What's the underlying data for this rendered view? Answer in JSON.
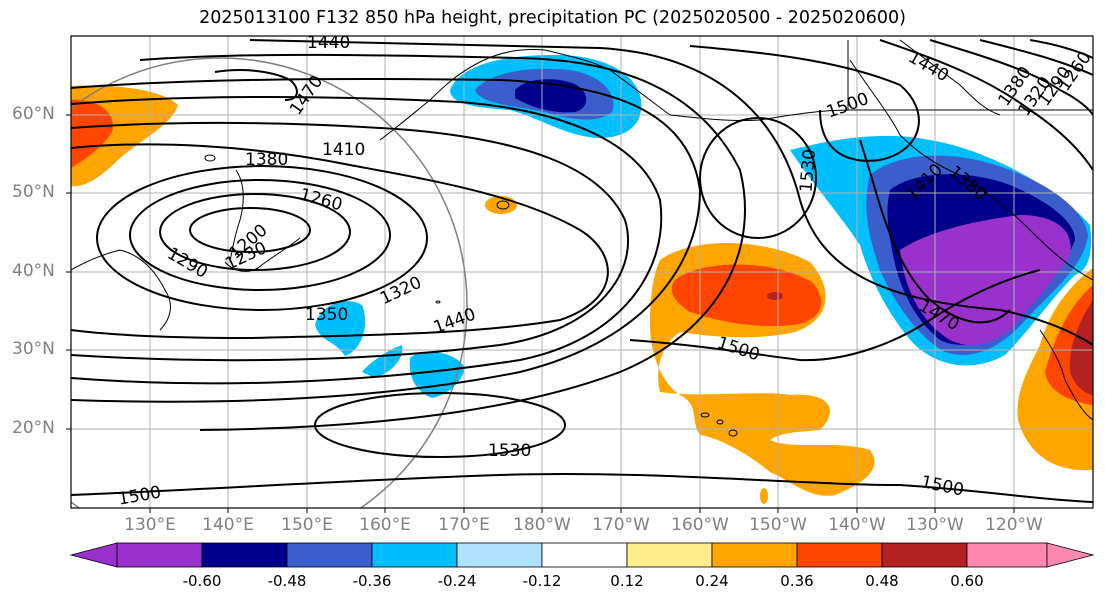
{
  "title": "2025013100 F132 850 hPa height, precipitation PC (2025020500 - 2025020600)",
  "lat_labels": [
    "60°N",
    "50°N",
    "40°N",
    "30°N",
    "20°N"
  ],
  "lon_labels": [
    "130°E",
    "140°E",
    "150°E",
    "160°E",
    "170°E",
    "180°W",
    "170°W",
    "160°W",
    "150°W",
    "140°W",
    "130°W",
    "120°W"
  ],
  "contour_labels": [
    "1440",
    "1470",
    "1380",
    "1410",
    "1260",
    "1200",
    "1230",
    "1290",
    "1320",
    "1350",
    "1440",
    "1500",
    "1530",
    "1500",
    "1500",
    "1530",
    "1440",
    "1410",
    "1380",
    "1470",
    "1500",
    "1380",
    "1320",
    "1290",
    "1260"
  ],
  "colorbar": {
    "ticks": [
      "-0.60",
      "-0.48",
      "-0.36",
      "-0.24",
      "-0.12",
      "0.12",
      "0.24",
      "0.36",
      "0.48",
      "0.60"
    ],
    "colors": [
      "#9932CC",
      "#00008B",
      "#3A5FCD",
      "#00BFFF",
      "#B0E2FF",
      "#FFFFFF",
      "#FFEC8B",
      "#FFA500",
      "#FF4500",
      "#B22222",
      "#FF88B0"
    ]
  }
}
